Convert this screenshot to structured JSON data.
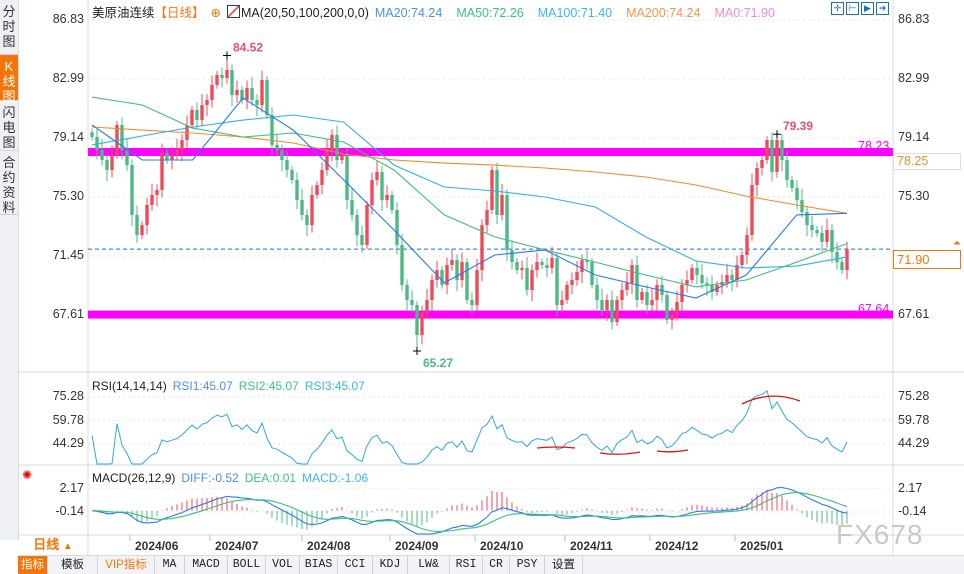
{
  "sidebar": {
    "tabs": [
      {
        "label": "分时图",
        "active": false
      },
      {
        "label": "K线图",
        "active": true
      },
      {
        "label": "闪电图",
        "active": false
      },
      {
        "label": "合约资料",
        "active": false
      }
    ]
  },
  "legend": {
    "symbol": "美原油连续",
    "period": "【日线】",
    "settings_icon": "crosshair-circle-icon",
    "ma_icon": "chart-icon",
    "ma_params": "MA(20,50,100,200,0,0)",
    "items": [
      {
        "label": "MA20:74.24",
        "color": "#4a8ff0"
      },
      {
        "label": "MA50:72.26",
        "color": "#3cc08a"
      },
      {
        "label": "MA100:71.40",
        "color": "#3bb4e8"
      },
      {
        "label": "MA200:74.24",
        "color": "#f5954a"
      },
      {
        "label": "MA0:71.90",
        "color": "#f08ad8"
      }
    ]
  },
  "toolbar_icons": [
    "crosshair-icon",
    "fit-range-icon",
    "play-range-icon",
    "exit-icon"
  ],
  "price_axis": {
    "ticks": [
      "86.83",
      "82.99",
      "79.14",
      "75.30",
      "71.45",
      "67.61"
    ],
    "max": 86.83,
    "min": 67.61
  },
  "right_labels": {
    "ma_box": "78.25",
    "current_price": "71.90"
  },
  "annotations": {
    "high": "84.52",
    "low": "65.27",
    "recent_high": "79.39",
    "resistance": {
      "value": 78.23,
      "label": "78.23"
    },
    "support": {
      "value": 67.64,
      "label": "67.64"
    },
    "line_color": "#ff00ff"
  },
  "colors": {
    "up": "#f04a5a",
    "down": "#4cb884",
    "ma20": "#2a7ae8",
    "ma50": "#3cbf7a",
    "ma100": "#35aee8",
    "ma200": "#f08a30",
    "accent": "#f7740a"
  },
  "chart_data": {
    "type": "candlestick",
    "closes": [
      79.21,
      78.36,
      77.71,
      77.06,
      78.04,
      79.99,
      78.36,
      77.38,
      74.13,
      72.82,
      73.47,
      74.78,
      75.43,
      75.76,
      78.17,
      77.71,
      78.04,
      78.36,
      79.01,
      79.99,
      80.97,
      80.32,
      81.29,
      81.62,
      82.6,
      83.25,
      83.05,
      83.57,
      81.94,
      82.27,
      81.62,
      82.4,
      81.62,
      81.29,
      82.92,
      80.64,
      78.69,
      78.36,
      77.71,
      77.06,
      76.41,
      75.1,
      74.13,
      73.47,
      75.43,
      76.08,
      77.06,
      78.36,
      79.34,
      77.71,
      78.04,
      75.1,
      74.13,
      72.82,
      72.17,
      74.78,
      76.41,
      76.93,
      75.1,
      75.43,
      74.45,
      72.17,
      69.57,
      68.59,
      68.26,
      66.31,
      67.74,
      68.59,
      69.89,
      70.54,
      69.57,
      70.87,
      71.19,
      69.89,
      71.06,
      68.59,
      68.26,
      70.54,
      73.47,
      74.45,
      77.06,
      74.13,
      75.43,
      71.85,
      71.06,
      70.54,
      70.67,
      69.24,
      70.54,
      71.06,
      70.87,
      70.67,
      71.33,
      68.26,
      68.59,
      69.57,
      69.89,
      70.41,
      71.19,
      71.06,
      69.57,
      68.59,
      67.94,
      68.59,
      67.16,
      68.59,
      69.24,
      69.7,
      70.87,
      68.59,
      69.11,
      68.26,
      68.59,
      69.57,
      68.91,
      67.29,
      67.61,
      68.46,
      69.57,
      69.89,
      70.67,
      70.22,
      69.7,
      69.57,
      69.11,
      69.57,
      69.76,
      70.22,
      69.89,
      70.87,
      71.52,
      72.82,
      76.08,
      77.19,
      77.71,
      79.01,
      76.93,
      79.01,
      77.71,
      76.41,
      75.89,
      75.1,
      74.32,
      73.47,
      73.15,
      72.95,
      72.37,
      73.15,
      71.72,
      71.06,
      70.54,
      71.9
    ],
    "ma": {
      "ma20": [
        79.99,
        77.71,
        77.71,
        81.75,
        79.66,
        76.41,
        73.15,
        69.7,
        71.52,
        71.85,
        70.22,
        69.44,
        68.72,
        70.22,
        74.13,
        74.24
      ],
      "ma50": [
        81.81,
        81.29,
        79.79,
        79.21,
        79.47,
        78.88,
        77.06,
        74.13,
        72.7,
        71.85,
        71.06,
        70.22,
        69.44,
        69.89,
        71.06,
        72.26
      ],
      "ma100": [
        78.69,
        79.27,
        79.86,
        80.31,
        80.64,
        80.18,
        77.38,
        75.95,
        75.69,
        75.3,
        74.65,
        72.7,
        71.13,
        70.67,
        70.8,
        71.4
      ],
      "ma200": [
        79.86,
        79.66,
        79.47,
        79.21,
        78.82,
        78.1,
        77.71,
        77.51,
        77.38,
        77.19,
        76.93,
        76.6,
        76.08,
        75.36,
        74.78,
        74.24
      ]
    },
    "x_ticks": [
      "2024/06",
      "2024/07",
      "2024/08",
      "2024/09",
      "2024/10",
      "2024/11",
      "2024/12",
      "2025/01"
    ]
  },
  "rsi": {
    "title": "RSI(14,14,14)",
    "rsi1": "RSI1:45.07",
    "rsi2": "RSI2:45.07",
    "rsi3": "RSI3:45.07",
    "ticks": [
      "75.28",
      "59.78",
      "44.29"
    ]
  },
  "macd": {
    "title": "MACD(26,12,9)",
    "diff": "DIFF:-0.52",
    "dea": "DEA:0.01",
    "macd": "MACD:-1.06",
    "ticks": [
      "2.17",
      "-0.14"
    ]
  },
  "period_selector": {
    "label": "日线",
    "icon": "triangle-up-icon"
  },
  "bottom_tabs": [
    "指标",
    "模板",
    "VIP指标",
    "MA",
    "MACD",
    "BOLL",
    "VOL",
    "BIAS",
    "CCI",
    "KDJ",
    "LW&",
    "RSI",
    "CR",
    "PSY",
    "设置"
  ],
  "watermark": "FX678"
}
